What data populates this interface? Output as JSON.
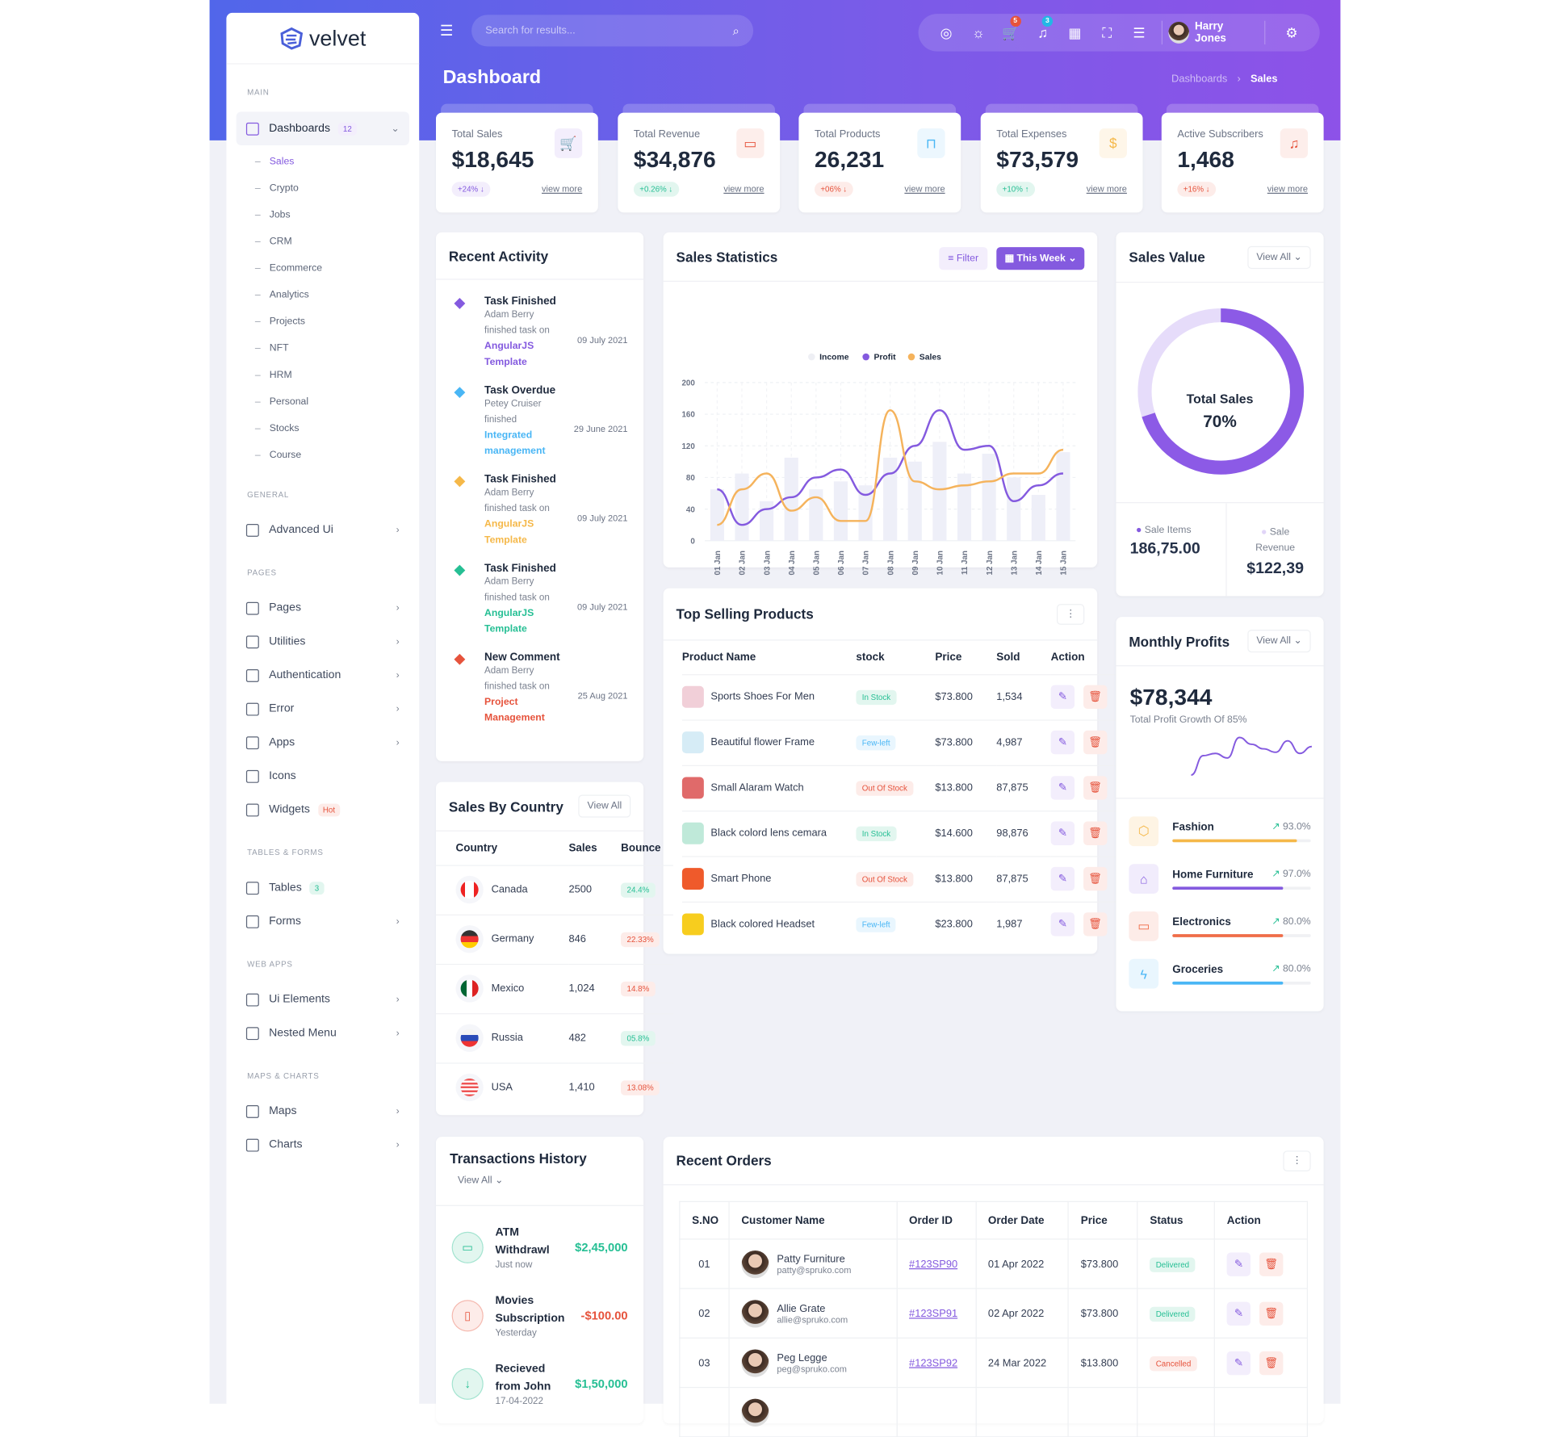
{
  "colors": {
    "primary": "#845adf",
    "secondary": "#23b7e5",
    "warning": "#f5b849",
    "success": "#26bf94",
    "danger": "#e6533c",
    "info": "#49b6f5"
  },
  "brand": {
    "name": "velvet"
  },
  "header": {
    "search_placeholder": "Search for results...",
    "cart_count": "5",
    "notif_count": "3",
    "user_name": "Harry Jones",
    "icons": [
      "globe-icon",
      "sun-icon",
      "cart-icon",
      "bell-icon",
      "apps-grid-icon",
      "fullscreen-icon",
      "sliders-icon",
      "gear-icon"
    ]
  },
  "page": {
    "title": "Dashboard",
    "breadcrumb": [
      "Dashboards",
      "Sales"
    ]
  },
  "sidebar": {
    "sections": [
      {
        "label": "Main",
        "items": [
          {
            "label": "Dashboards",
            "badge": "12",
            "active": true,
            "sub": [
              "Sales",
              "Crypto",
              "Jobs",
              "CRM",
              "Ecommerce",
              "Analytics",
              "Projects",
              "NFT",
              "HRM",
              "Personal",
              "Stocks",
              "Course"
            ]
          }
        ]
      },
      {
        "label": "General",
        "items": [
          {
            "label": "Advanced Ui",
            "chevron": true
          }
        ]
      },
      {
        "label": "Pages",
        "items": [
          {
            "label": "Pages",
            "chevron": true
          },
          {
            "label": "Utilities",
            "chevron": true
          },
          {
            "label": "Authentication",
            "chevron": true
          },
          {
            "label": "Error",
            "chevron": true
          },
          {
            "label": "Apps",
            "chevron": true
          },
          {
            "label": "Icons"
          },
          {
            "label": "Widgets",
            "badge": "Hot",
            "badge_type": "danger"
          }
        ]
      },
      {
        "label": "Tables & Forms",
        "items": [
          {
            "label": "Tables",
            "badge": "3",
            "badge_type": "success"
          },
          {
            "label": "Forms",
            "chevron": true
          }
        ]
      },
      {
        "label": "Web Apps",
        "items": [
          {
            "label": "Ui Elements",
            "chevron": true
          },
          {
            "label": "Nested Menu",
            "chevron": true
          }
        ]
      },
      {
        "label": "Maps & Charts",
        "items": [
          {
            "label": "Maps",
            "chevron": true
          },
          {
            "label": "Charts",
            "chevron": true
          }
        ]
      }
    ]
  },
  "stats": [
    {
      "label": "Total Sales",
      "value": "$18,645",
      "change": "+24%",
      "dir": "down",
      "icon": "cart-icon",
      "color": "#845adf",
      "bg": "#f3eefc",
      "link": "view more"
    },
    {
      "label": "Total Revenue",
      "value": "$34,876",
      "change": "+0.26%",
      "dir": "down",
      "icon": "archive-icon",
      "color": "#e6533c",
      "bg": "#fdeeeb",
      "link": "view more"
    },
    {
      "label": "Total Products",
      "value": "26,231",
      "change": "+06%",
      "dir": "down",
      "icon": "bag-icon",
      "color": "#49b6f5",
      "bg": "#ecf7fe",
      "link": "view more"
    },
    {
      "label": "Total Expenses",
      "value": "$73,579",
      "change": "+10%",
      "dir": "up",
      "icon": "dollar-icon",
      "color": "#f5b849",
      "bg": "#fef6e9",
      "link": "view more"
    },
    {
      "label": "Active Subscribers",
      "value": "1,468",
      "change": "+16%",
      "dir": "down",
      "icon": "bell-icon",
      "color": "#e6533c",
      "bg": "#fdeeeb",
      "link": "view more"
    }
  ],
  "recent_activity": {
    "title": "Recent Activity",
    "items": [
      {
        "title": "Task Finished",
        "name": "Adam Berry",
        "text": "finished task on",
        "highlight": "AngularJS Template",
        "date": "09 July 2021",
        "color": "#845adf"
      },
      {
        "title": "Task Overdue",
        "name": "Petey Cruiser",
        "text": "finished",
        "highlight": "Integrated management",
        "date": "29 June 2021",
        "color": "#49b6f5"
      },
      {
        "title": "Task Finished",
        "name": "Adam Berry",
        "text": "finished task on",
        "highlight": "AngularJS Template",
        "date": "09 July 2021",
        "color": "#f5b849"
      },
      {
        "title": "Task Finished",
        "name": "Adam Berry",
        "text": "finished task on",
        "highlight": "AngularJS Template",
        "date": "09 July 2021",
        "color": "#26bf94"
      },
      {
        "title": "New Comment",
        "name": "Adam Berry",
        "text": "finished task on",
        "highlight": "Project Management",
        "date": "25 Aug 2021",
        "color": "#e6533c"
      }
    ]
  },
  "sales_statistics": {
    "title": "Sales Statistics",
    "filter_label": "Filter",
    "period_label": "This Week"
  },
  "chart_data": {
    "type": "bar+line",
    "categories": [
      "01 Jan",
      "02 Jan",
      "03 Jan",
      "04 Jan",
      "05 Jan",
      "06 Jan",
      "07 Jan",
      "08 Jan",
      "09 Jan",
      "10 Jan",
      "11 Jan",
      "12 Jan",
      "13 Jan",
      "14 Jan",
      "15 Jan"
    ],
    "series": [
      {
        "name": "Income",
        "type": "bar",
        "color": "#f0f0f8",
        "values": [
          65,
          85,
          50,
          105,
          65,
          75,
          70,
          105,
          100,
          125,
          85,
          110,
          80,
          58,
          112
        ]
      },
      {
        "name": "Profit",
        "type": "line",
        "color": "#845adf",
        "values": [
          65,
          20,
          40,
          55,
          80,
          90,
          58,
          85,
          120,
          165,
          115,
          120,
          50,
          70,
          85
        ]
      },
      {
        "name": "Sales",
        "type": "line",
        "color": "#f5b35c",
        "values": [
          20,
          65,
          85,
          38,
          55,
          25,
          25,
          165,
          75,
          65,
          70,
          75,
          85,
          85,
          115
        ]
      }
    ],
    "yticks": [
      0,
      40,
      80,
      120,
      160,
      200
    ],
    "ylim": [
      0,
      200
    ],
    "legend": "top-center",
    "grid": true
  },
  "sales_value": {
    "title": "Sales Value",
    "view_all": "View All",
    "center_label": "Total Sales",
    "center_value": "70%",
    "percent": 70,
    "stats": [
      {
        "label": "Sale Items",
        "value": "186,75.00",
        "color": "#845adf"
      },
      {
        "label": "Sale Revenue",
        "value": "$122,39",
        "color": "#e1d5f8"
      }
    ]
  },
  "top_selling": {
    "title": "Top Selling Products",
    "columns": [
      "Product Name",
      "stock",
      "Price",
      "Sold",
      "Action"
    ],
    "rows": [
      {
        "name": "Sports Shoes For Men",
        "stock": "In Stock",
        "stock_type": "success",
        "price": "$73.800",
        "sold": "1,534",
        "thumb": "#f1cfd8"
      },
      {
        "name": "Beautiful flower Frame",
        "stock": "Few-left",
        "stock_type": "info",
        "price": "$73.800",
        "sold": "4,987",
        "thumb": "#d6ecf6"
      },
      {
        "name": "Small Alaram Watch",
        "stock": "Out Of Stock",
        "stock_type": "danger",
        "price": "$13.800",
        "sold": "87,875",
        "thumb": "#e06a6a"
      },
      {
        "name": "Black colord lens cemara",
        "stock": "In Stock",
        "stock_type": "success",
        "price": "$14.600",
        "sold": "98,876",
        "thumb": "#bfe9d9"
      },
      {
        "name": "Smart Phone",
        "stock": "Out Of Stock",
        "stock_type": "danger",
        "price": "$13.800",
        "sold": "87,875",
        "thumb": "#ef5a2b"
      },
      {
        "name": "Black colored Headset",
        "stock": "Few-left",
        "stock_type": "info",
        "price": "$23.800",
        "sold": "1,987",
        "thumb": "#f7cd1e"
      }
    ]
  },
  "monthly_profits": {
    "title": "Monthly Profits",
    "view_all": "View All",
    "value": "$78,344",
    "caption": "Total Profit Growth Of 85%",
    "sparkline": [
      5,
      22,
      24,
      20,
      38,
      32,
      28,
      25,
      35,
      24,
      30
    ],
    "categories": [
      {
        "label": "Fashion",
        "percent_label": "93.0%",
        "fill": 90,
        "color": "#f5b849",
        "bg": "#fef4e4",
        "icon": "box-icon"
      },
      {
        "label": "Home Furniture",
        "percent_label": "97.0%",
        "fill": 80,
        "color": "#845adf",
        "bg": "#f1ecfc",
        "icon": "home-icon"
      },
      {
        "label": "Electronics",
        "percent_label": "80.0%",
        "fill": 80,
        "color": "#f06d48",
        "bg": "#fdece8",
        "icon": "tv-icon"
      },
      {
        "label": "Groceries",
        "percent_label": "80.0%",
        "fill": 80,
        "color": "#49b6f5",
        "bg": "#e9f6fe",
        "icon": "bolt-icon"
      }
    ]
  },
  "sales_by_country": {
    "title": "Sales By Country",
    "view_all": "View All",
    "columns": [
      "Country",
      "Sales",
      "Bounce"
    ],
    "rows": [
      {
        "country": "Canada",
        "sales": "2500",
        "bounce": "24.4%",
        "type": "success",
        "flag": "linear-gradient(90deg,#e22 25%,#fff 25%,#fff 75%,#e22 75%)"
      },
      {
        "country": "Germany",
        "sales": "846",
        "bounce": "22.33%",
        "type": "danger",
        "flag": "linear-gradient(#333 33%,#e33 33%,#e33 66%,#fc0 66%)"
      },
      {
        "country": "Mexico",
        "sales": "1,024",
        "bounce": "14.8%",
        "type": "danger",
        "flag": "linear-gradient(90deg,#063 33%,#fff 33%,#fff 66%,#d22 66%)"
      },
      {
        "country": "Russia",
        "sales": "482",
        "bounce": "05.8%",
        "type": "success",
        "flag": "linear-gradient(#f4f4f4 33%,#2a4bb8 33%,#2a4bb8 66%,#e33 66%)"
      },
      {
        "country": "USA",
        "sales": "1,410",
        "bounce": "13.08%",
        "type": "danger",
        "flag": "repeating-linear-gradient(#e55 0 2px,#fff 2px 4px)"
      }
    ]
  },
  "transactions": {
    "title": "Transactions History",
    "view_all": "View All",
    "items": [
      {
        "name": "ATM Withdrawl",
        "time": "Just now",
        "amount": "$2,45,000",
        "type": "success",
        "icon": "card-icon"
      },
      {
        "name": "Movies Subscription",
        "time": "Yesterday",
        "amount": "-$100.00",
        "type": "danger",
        "icon": "phone-icon"
      },
      {
        "name": "Recieved from John",
        "time": "17-04-2022",
        "amount": "$1,50,000",
        "type": "success",
        "icon": "arrow-down-icon"
      }
    ]
  },
  "recent_orders": {
    "title": "Recent Orders",
    "columns": [
      "S.NO",
      "Customer Name",
      "Order ID",
      "Order Date",
      "Price",
      "Status",
      "Action"
    ],
    "rows": [
      {
        "sno": "01",
        "name": "Patty Furniture",
        "email": "patty@spruko.com",
        "order_id": "#123SP90",
        "date": "01 Apr 2022",
        "price": "$73.800",
        "status": "Delivered",
        "type": "success"
      },
      {
        "sno": "02",
        "name": "Allie Grate",
        "email": "allie@spruko.com",
        "order_id": "#123SP91",
        "date": "02 Apr 2022",
        "price": "$73.800",
        "status": "Delivered",
        "type": "success"
      },
      {
        "sno": "03",
        "name": "Peg Legge",
        "email": "peg@spruko.com",
        "order_id": "#123SP92",
        "date": "24 Mar 2022",
        "price": "$13.800",
        "status": "Cancelled",
        "type": "danger"
      }
    ]
  }
}
